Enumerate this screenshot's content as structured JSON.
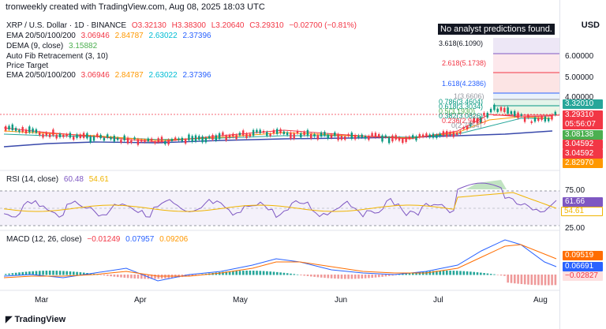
{
  "header": {
    "credit": "tronweekly created with TradingView.com, Aug 08, 2025 18:03 UTC"
  },
  "legend": {
    "symbol": "XRP / U.S. Dollar · 1D · BINANCE",
    "open": "O3.32130",
    "high": "H3.38300",
    "low": "L3.20640",
    "close": "C3.29310",
    "change": "−0.02700 (−0.81%)",
    "ema_label": "EMA 20/50/100/200",
    "ema_vals": [
      "3.06946",
      "2.84787",
      "2.63022",
      "2.37396"
    ],
    "dema_label": "DEMA (9, close)",
    "dema_val": "3.15882",
    "fib_label": "Auto Fib Retracement (3, 10)",
    "price_target_label": "Price Target",
    "ema2_label": "EMA 20/50/100/200",
    "ema2_vals": [
      "3.06946",
      "2.84787",
      "2.63022",
      "2.37396"
    ]
  },
  "currency": "USD",
  "no_analyst": "No analyst predictions found.",
  "fib_levels": {
    "l3618": "3.618(6.1090)",
    "l2618": "2.618(5.1738)",
    "l1618": "1.618(4.2386)",
    "l1": "1(3.6606)",
    "l0786": "0.786(3.4604)",
    "l0618": "0.618(3.3034)",
    "l05": "0.5(3.1930)",
    "l0382": "0.382(3.0826)",
    "l0236": "0.236(2.9461)",
    "l0": "0(2.7254)"
  },
  "price_axis": {
    "t6": "6.00000",
    "t5": "5.00000",
    "t4": "4.00000",
    "tags": {
      "p1": "3.32010",
      "p2": "3.29310",
      "countdown": "05:56:07",
      "p3": "3.08138",
      "p4": "3.04592",
      "p5": "3.04592",
      "p6": "2.82970"
    }
  },
  "rsi": {
    "label": "RSI (14, close)",
    "v1": "60.48",
    "v2": "54.61",
    "t75": "75.00",
    "t25": "25.00",
    "tag1": "61.66",
    "tag2": "54.61"
  },
  "macd": {
    "label": "MACD (12, 26, close)",
    "v1": "−0.01249",
    "v2": "0.07957",
    "v3": "0.09206",
    "tag1": "0.09519",
    "tag2": "0.06691",
    "tag3": "−0.02827"
  },
  "time_axis": [
    "Mar",
    "Apr",
    "May",
    "Jun",
    "Jul",
    "Aug"
  ],
  "logo": "TradingView",
  "colors": {
    "up": "#089981",
    "down": "#f23645",
    "rsi_line": "#7e57c2",
    "rsi_ma": "#f0b400",
    "macd_line": "#2962ff",
    "signal_line": "#ff6d00"
  }
}
